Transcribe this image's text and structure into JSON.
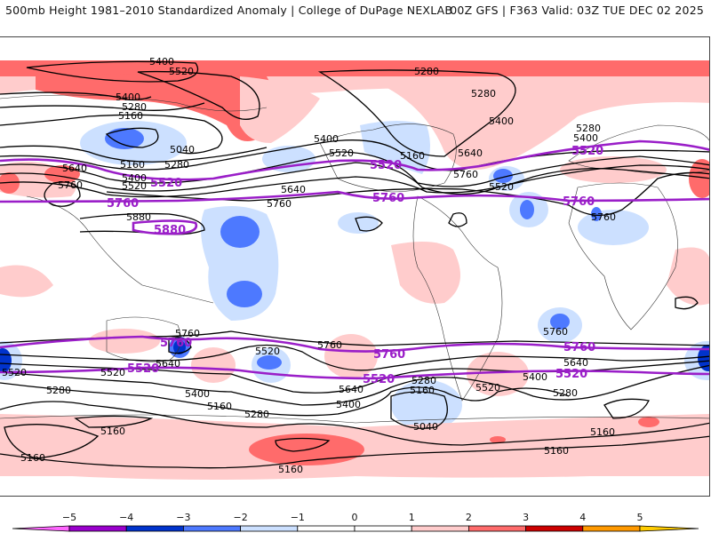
{
  "header": {
    "title_left": "500mb Height 1981–2010 Standardized Anomaly | College of DuPage NEXLAB",
    "title_right": "00Z GFS | F363 Valid: 03Z TUE DEC 02 2025"
  },
  "map": {
    "field": "500mb height standardized anomaly",
    "contour_interval_dam_note": "black contours every 120 m",
    "highlighted_contour_color": "#9a1ec8",
    "contour_labels": [
      {
        "id": "c-5400-np",
        "text": "5400"
      },
      {
        "id": "c-5520-np",
        "text": "5520"
      },
      {
        "id": "c-5280-na",
        "text": "5280"
      },
      {
        "id": "c-5280-gr",
        "text": "5280"
      },
      {
        "id": "c-5400-siberia",
        "text": "5400"
      },
      {
        "id": "c-5280-siberia",
        "text": "5280"
      },
      {
        "id": "c-5160-siberia",
        "text": "5160"
      },
      {
        "id": "c-5040-asia",
        "text": "5040"
      },
      {
        "id": "c-5160-asia",
        "text": "5160"
      },
      {
        "id": "c-5280-asia",
        "text": "5280"
      },
      {
        "id": "c-5640-asia",
        "text": "5640"
      },
      {
        "id": "c-5400-japan",
        "text": "5400"
      },
      {
        "id": "c-5520-japan",
        "text": "5520"
      },
      {
        "id": "c-5760-asia",
        "text": "5760"
      },
      {
        "id": "c-5880-wpac",
        "text": "5880"
      },
      {
        "id": "c-5400-gulfak",
        "text": "5400"
      },
      {
        "id": "c-5520-gulfak",
        "text": "5520"
      },
      {
        "id": "c-5640-epac",
        "text": "5640"
      },
      {
        "id": "c-5760-epac",
        "text": "5760"
      },
      {
        "id": "c-5160-hudson",
        "text": "5160"
      },
      {
        "id": "c-5640-natl",
        "text": "5640"
      },
      {
        "id": "c-5760-natl",
        "text": "5760"
      },
      {
        "id": "c-5400-natl",
        "text": "5400"
      },
      {
        "id": "c-5520-natl",
        "text": "5520"
      },
      {
        "id": "c-5280-europe",
        "text": "5280"
      },
      {
        "id": "c-5400-europe",
        "text": "5400"
      },
      {
        "id": "c-5760-africa",
        "text": "5760"
      },
      {
        "id": "c-5760-aus",
        "text": "5760"
      },
      {
        "id": "c-5640-aus",
        "text": "5640"
      },
      {
        "id": "c-5520-sio",
        "text": "5520"
      },
      {
        "id": "c-5280-sio",
        "text": "5280"
      },
      {
        "id": "c-5400-spac",
        "text": "5400"
      },
      {
        "id": "c-5160-spac",
        "text": "5160"
      },
      {
        "id": "c-5160-ant1",
        "text": "5160"
      },
      {
        "id": "c-5160-ant2",
        "text": "5160"
      },
      {
        "id": "c-5520-spac2",
        "text": "5520"
      },
      {
        "id": "c-5760-spac",
        "text": "5760"
      },
      {
        "id": "c-5640-spac",
        "text": "5640"
      },
      {
        "id": "c-5400-spac2",
        "text": "5400"
      },
      {
        "id": "c-5280-spac2",
        "text": "5280"
      },
      {
        "id": "c-5160-ant3",
        "text": "5160"
      },
      {
        "id": "c-5280-drake",
        "text": "5280"
      },
      {
        "id": "c-5160-drake",
        "text": "5160"
      },
      {
        "id": "c-5040-drake",
        "text": "5040"
      },
      {
        "id": "c-5520-satl",
        "text": "5520"
      },
      {
        "id": "c-5760-satl",
        "text": "5760"
      },
      {
        "id": "c-5640-satl",
        "text": "5640"
      },
      {
        "id": "c-5400-satl",
        "text": "5400"
      },
      {
        "id": "c-5280-satl",
        "text": "5280"
      },
      {
        "id": "c-5160-satl",
        "text": "5160"
      },
      {
        "id": "c-5160-ant4",
        "text": "5160"
      },
      {
        "id": "c-5520-sind",
        "text": "5520"
      }
    ],
    "highlight_labels": [
      {
        "id": "p-5520-asia",
        "text": "5520"
      },
      {
        "id": "p-5760-asia",
        "text": "5760"
      },
      {
        "id": "p-5880-wpac",
        "text": "5880"
      },
      {
        "id": "p-5520-na",
        "text": "5520"
      },
      {
        "id": "p-5760-na",
        "text": "5760"
      },
      {
        "id": "p-5520-eu",
        "text": "5520"
      },
      {
        "id": "p-5760-af",
        "text": "5760"
      },
      {
        "id": "p-5760-aus",
        "text": "5760"
      },
      {
        "id": "p-5520-sio",
        "text": "5520"
      },
      {
        "id": "p-5760-spac",
        "text": "5760"
      },
      {
        "id": "p-5520-spac",
        "text": "5520"
      },
      {
        "id": "p-5760-satl",
        "text": "5760"
      },
      {
        "id": "p-5520-satl",
        "text": "5520"
      }
    ]
  },
  "colorbar": {
    "ticks": [
      "-5",
      "-4",
      "-3",
      "-2",
      "-1",
      "0",
      "1",
      "2",
      "3",
      "4",
      "5"
    ],
    "bins": [
      {
        "from": "<-5",
        "color": "#ff66ff"
      },
      {
        "from": "-5",
        "to": "-4",
        "color": "#9900cc"
      },
      {
        "from": "-4",
        "to": "-3",
        "color": "#0033cc"
      },
      {
        "from": "-3",
        "to": "-2",
        "color": "#4d79ff"
      },
      {
        "from": "-2",
        "to": "-1",
        "color": "#cce0ff"
      },
      {
        "from": "-1",
        "to": "0",
        "color": "#ffffff"
      },
      {
        "from": "0",
        "to": "1",
        "color": "#ffffff"
      },
      {
        "from": "1",
        "to": "2",
        "color": "#ffcccc"
      },
      {
        "from": "2",
        "to": "3",
        "color": "#ff6b6b"
      },
      {
        "from": "3",
        "to": "4",
        "color": "#cc0000"
      },
      {
        "from": "4",
        "to": "5",
        "color": "#ff9900"
      },
      {
        "from": ">5",
        "color": "#ffcc00"
      }
    ]
  }
}
